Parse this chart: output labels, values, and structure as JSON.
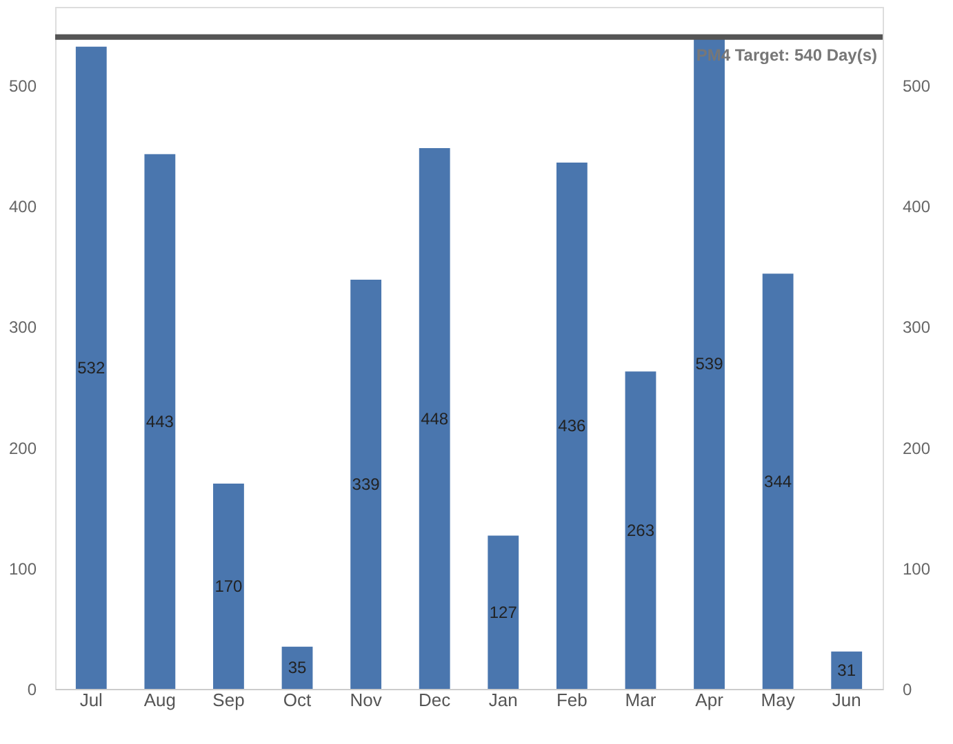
{
  "chart_data": {
    "type": "bar",
    "categories": [
      "Jul",
      "Aug",
      "Sep",
      "Oct",
      "Nov",
      "Dec",
      "Jan",
      "Feb",
      "Mar",
      "Apr",
      "May",
      "Jun"
    ],
    "values": [
      532,
      443,
      170,
      35,
      339,
      448,
      127,
      436,
      263,
      539,
      344,
      31
    ],
    "color": "#4a76ae",
    "data_labels": true,
    "ylim": [
      0,
      565
    ],
    "yticks": [
      0,
      100,
      200,
      300,
      400,
      500
    ],
    "y2lim": [
      0,
      565
    ],
    "y2ticks": [
      0,
      100,
      200,
      300,
      400,
      500
    ],
    "ref_lines": [
      {
        "axis": "y",
        "value": 540,
        "label": "PM4 Target: 540 Day(s)",
        "color": "#555555"
      }
    ],
    "grid": false
  }
}
